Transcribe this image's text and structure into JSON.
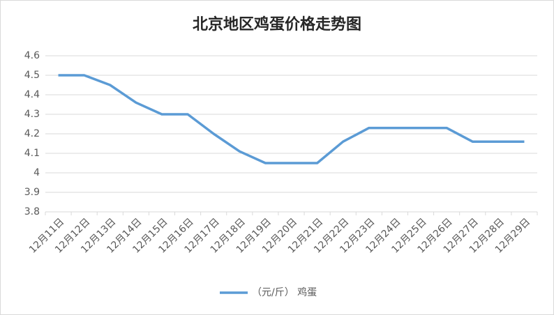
{
  "chart_data": {
    "type": "line",
    "title": "北京地区鸡蛋价格走势图",
    "categories": [
      "12月11日",
      "12月12日",
      "12月13日",
      "12月14日",
      "12月15日",
      "12月16日",
      "12月17日",
      "12月18日",
      "12月19日",
      "12月20日",
      "12月21日",
      "12月22日",
      "12月23日",
      "12月24日",
      "12月25日",
      "12月26日",
      "12月27日",
      "12月28日",
      "12月29日"
    ],
    "series": [
      {
        "name": "（元/斤） 鸡蛋",
        "color": "#5b9bd5",
        "values": [
          4.5,
          4.5,
          4.45,
          4.36,
          4.3,
          4.3,
          4.2,
          4.11,
          4.05,
          4.05,
          4.05,
          4.16,
          4.23,
          4.23,
          4.23,
          4.23,
          4.16,
          4.16,
          4.16
        ]
      }
    ],
    "ylim": [
      3.8,
      4.6
    ],
    "yticks": [
      3.8,
      3.9,
      4,
      4.1,
      4.2,
      4.3,
      4.4,
      4.5,
      4.6
    ],
    "grid": true,
    "legend": "bottom"
  }
}
